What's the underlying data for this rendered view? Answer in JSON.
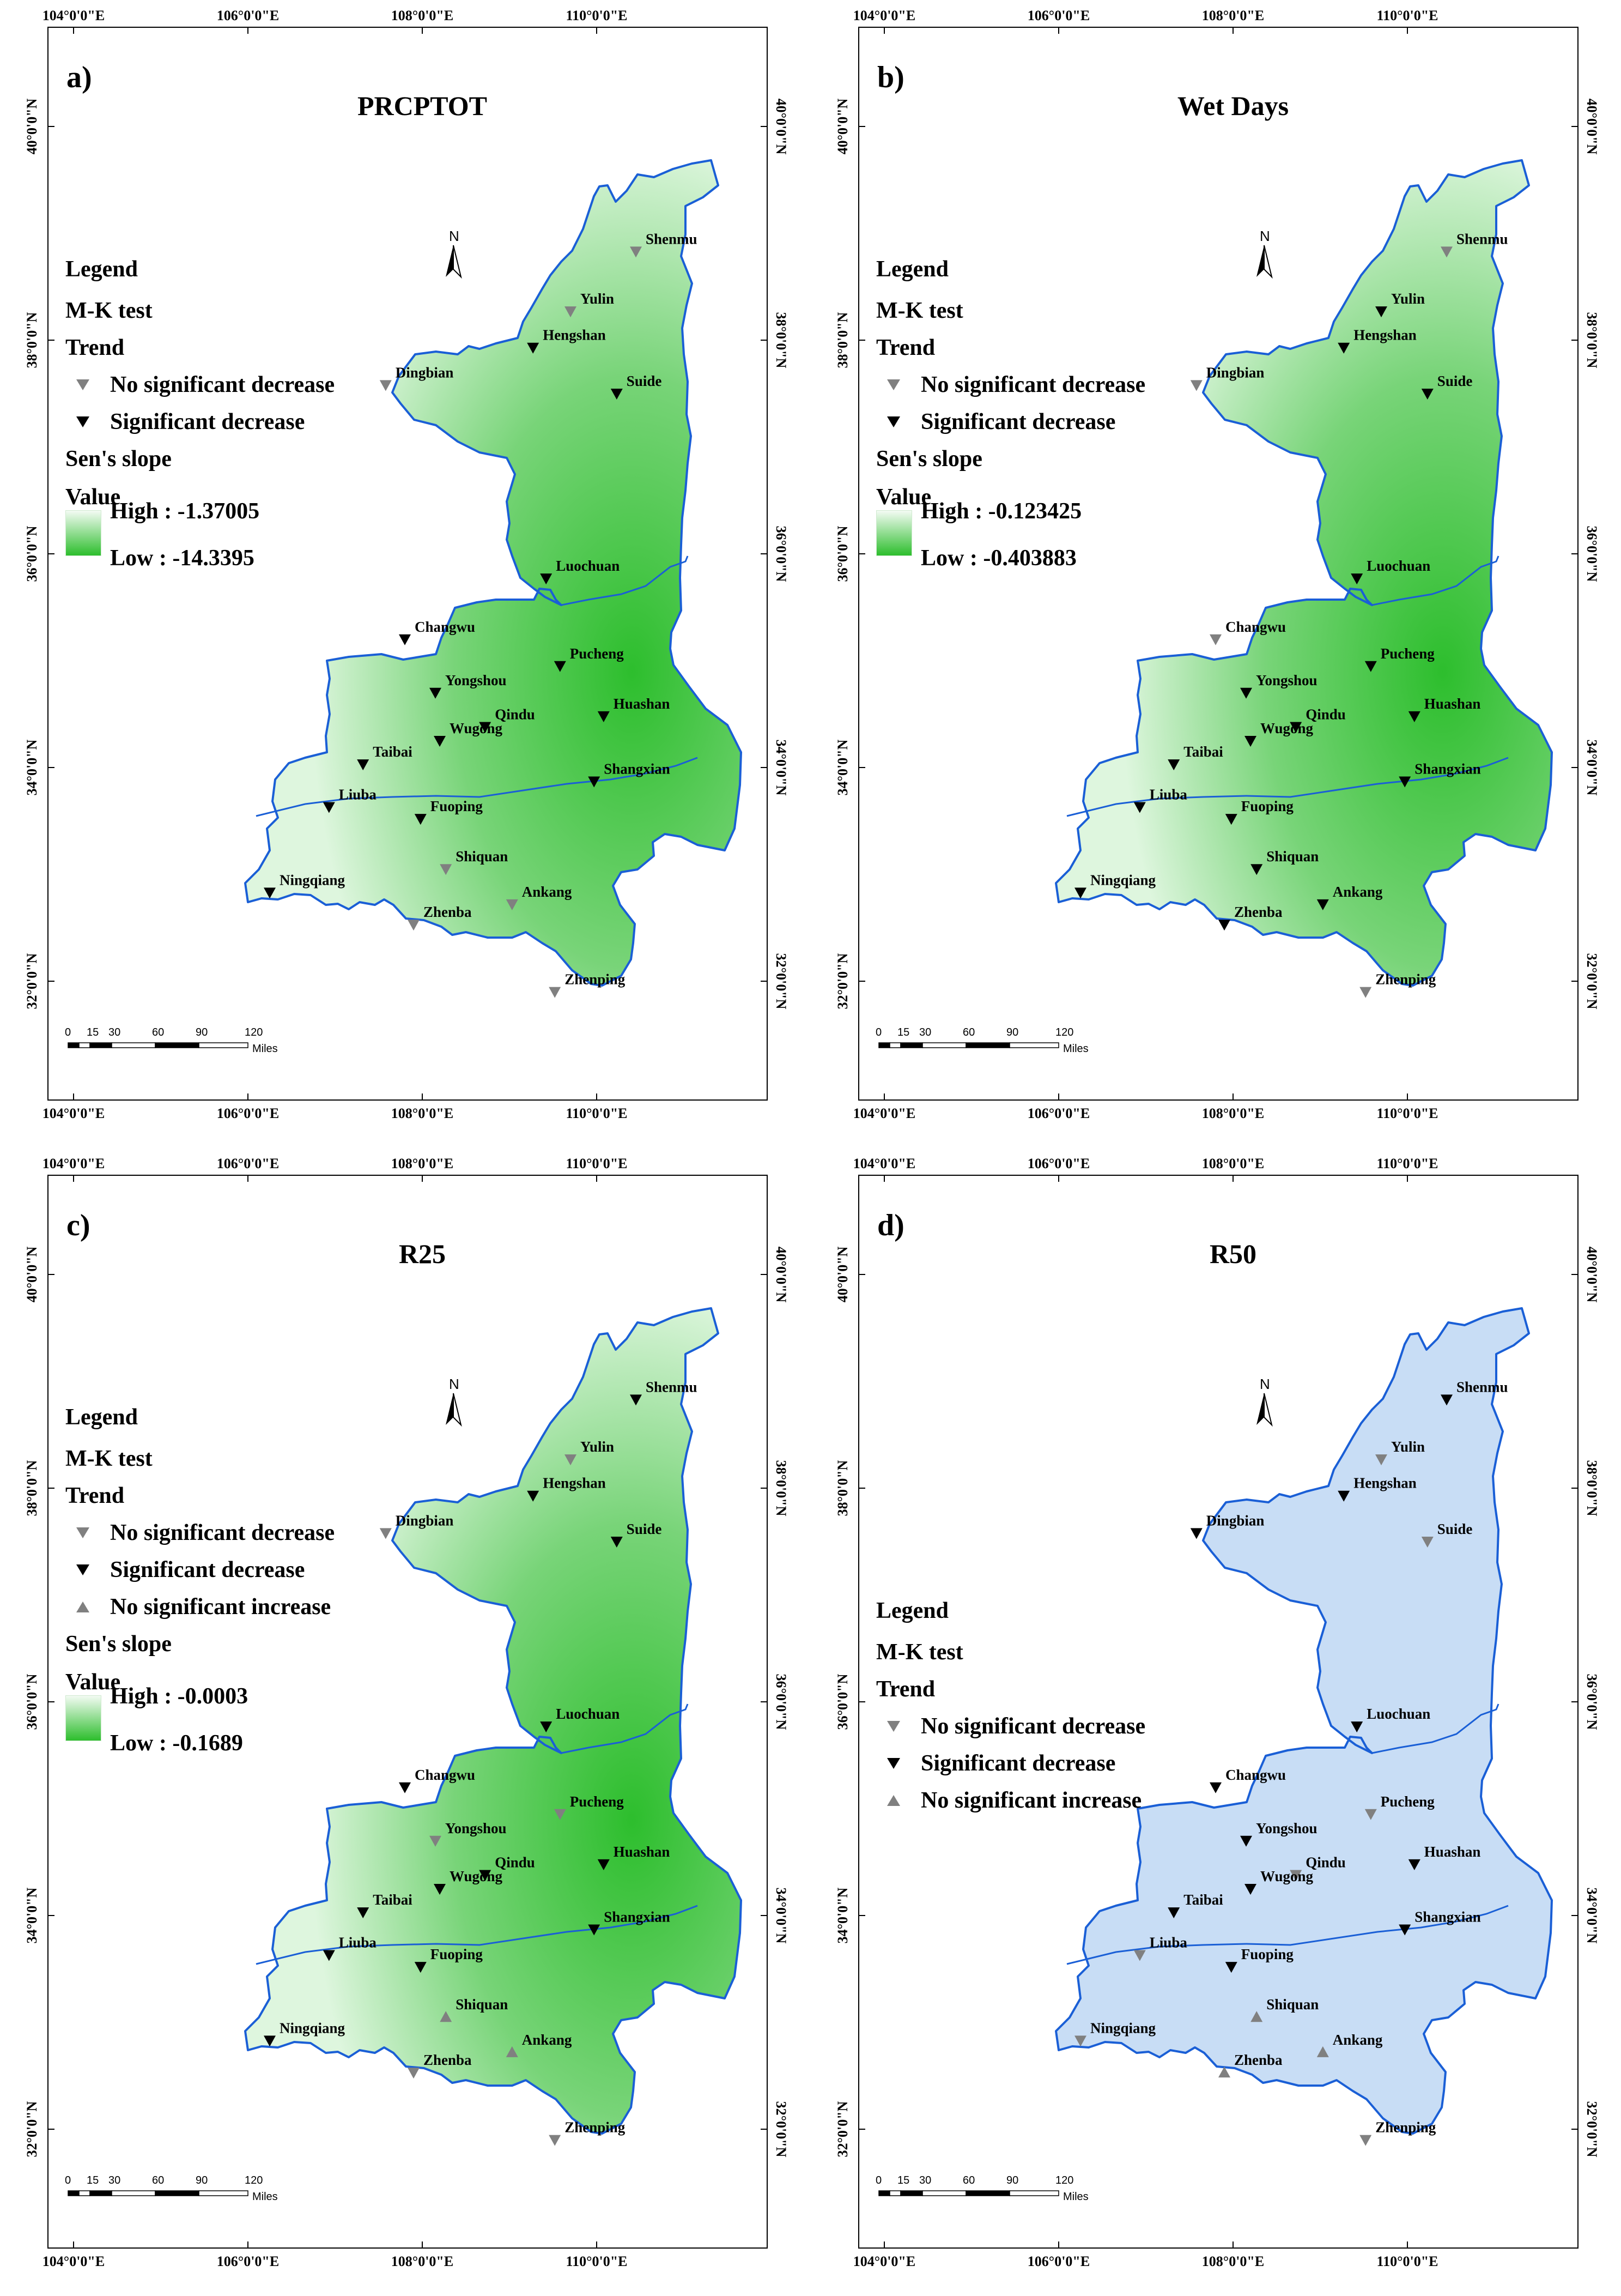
{
  "figure": {
    "axes": {
      "lon_ticks": [
        "104°0'0\"E",
        "106°0'0\"E",
        "108°0'0\"E",
        "110°0'0\"E"
      ],
      "lat_ticks": [
        "40°0'0\"N",
        "38°0'0\"N",
        "36°0'0\"N",
        "34°0'0\"N",
        "32°0'0\"N"
      ]
    },
    "north_label": "N",
    "scale": {
      "ticks": [
        "0",
        "15",
        "30",
        "60",
        "90",
        "120"
      ],
      "unit": "Miles"
    },
    "colors": {
      "boundary": "#1a5fd6",
      "green_high": "#def6de",
      "green_low": "#2dbe2d",
      "blue_fill": "#c8ddf5",
      "no_sig_decrease": "#808080",
      "sig_decrease": "#000000",
      "no_sig_increase": "#808080"
    }
  },
  "legend_labels": {
    "legend": "Legend",
    "mk": "M-K test",
    "trend": "Trend",
    "nsd": "No significant decrease",
    "sd": "Significant decrease",
    "nsi": "No significant increase",
    "sens": "Sen's slope",
    "value": "Value"
  },
  "panels": [
    {
      "letter": "a)",
      "title": "PRCPTOT",
      "fill": "green",
      "ramp": {
        "high": "High : -1.37005",
        "low": "Low : -14.3395"
      },
      "legend_items": [
        "nsd",
        "sd"
      ],
      "stations": [
        {
          "name": "Shenmu",
          "lon": 110.45,
          "lat": 38.83,
          "trend": "nsd"
        },
        {
          "name": "Yulin",
          "lon": 109.7,
          "lat": 38.27,
          "trend": "nsd"
        },
        {
          "name": "Hengshan",
          "lon": 109.27,
          "lat": 37.93,
          "trend": "sd"
        },
        {
          "name": "Suide",
          "lon": 110.23,
          "lat": 37.5,
          "trend": "sd"
        },
        {
          "name": "Dingbian",
          "lon": 107.58,
          "lat": 37.58,
          "trend": "nsd"
        },
        {
          "name": "Luochuan",
          "lon": 109.42,
          "lat": 35.77,
          "trend": "sd"
        },
        {
          "name": "Changwu",
          "lon": 107.8,
          "lat": 35.2,
          "trend": "sd"
        },
        {
          "name": "Pucheng",
          "lon": 109.58,
          "lat": 34.95,
          "trend": "sd"
        },
        {
          "name": "Yongshou",
          "lon": 108.15,
          "lat": 34.7,
          "trend": "sd"
        },
        {
          "name": "Qindu",
          "lon": 108.72,
          "lat": 34.38,
          "trend": "sd"
        },
        {
          "name": "Wugong",
          "lon": 108.2,
          "lat": 34.25,
          "trend": "sd"
        },
        {
          "name": "Huashan",
          "lon": 110.08,
          "lat": 34.48,
          "trend": "sd"
        },
        {
          "name": "Taibai",
          "lon": 107.32,
          "lat": 34.03,
          "trend": "sd"
        },
        {
          "name": "Shangxian",
          "lon": 109.97,
          "lat": 33.87,
          "trend": "sd"
        },
        {
          "name": "Liuba",
          "lon": 106.93,
          "lat": 33.63,
          "trend": "sd"
        },
        {
          "name": "Fuoping",
          "lon": 107.98,
          "lat": 33.52,
          "trend": "sd"
        },
        {
          "name": "Shiquan",
          "lon": 108.27,
          "lat": 33.05,
          "trend": "nsd"
        },
        {
          "name": "Ningqiang",
          "lon": 106.25,
          "lat": 32.83,
          "trend": "sd"
        },
        {
          "name": "Zhenba",
          "lon": 107.9,
          "lat": 32.53,
          "trend": "nsd"
        },
        {
          "name": "Ankang",
          "lon": 109.03,
          "lat": 32.72,
          "trend": "nsd"
        },
        {
          "name": "Zhenping",
          "lon": 109.52,
          "lat": 31.9,
          "trend": "nsd"
        }
      ]
    },
    {
      "letter": "b)",
      "title": "Wet Days",
      "fill": "green",
      "ramp": {
        "high": "High : -0.123425",
        "low": "Low : -0.403883"
      },
      "legend_items": [
        "nsd",
        "sd"
      ],
      "stations": [
        {
          "name": "Shenmu",
          "lon": 110.45,
          "lat": 38.83,
          "trend": "nsd"
        },
        {
          "name": "Yulin",
          "lon": 109.7,
          "lat": 38.27,
          "trend": "sd"
        },
        {
          "name": "Hengshan",
          "lon": 109.27,
          "lat": 37.93,
          "trend": "sd"
        },
        {
          "name": "Suide",
          "lon": 110.23,
          "lat": 37.5,
          "trend": "sd"
        },
        {
          "name": "Dingbian",
          "lon": 107.58,
          "lat": 37.58,
          "trend": "nsd"
        },
        {
          "name": "Luochuan",
          "lon": 109.42,
          "lat": 35.77,
          "trend": "sd"
        },
        {
          "name": "Changwu",
          "lon": 107.8,
          "lat": 35.2,
          "trend": "nsd"
        },
        {
          "name": "Pucheng",
          "lon": 109.58,
          "lat": 34.95,
          "trend": "sd"
        },
        {
          "name": "Yongshou",
          "lon": 108.15,
          "lat": 34.7,
          "trend": "sd"
        },
        {
          "name": "Qindu",
          "lon": 108.72,
          "lat": 34.38,
          "trend": "sd"
        },
        {
          "name": "Wugong",
          "lon": 108.2,
          "lat": 34.25,
          "trend": "sd"
        },
        {
          "name": "Huashan",
          "lon": 110.08,
          "lat": 34.48,
          "trend": "sd"
        },
        {
          "name": "Taibai",
          "lon": 107.32,
          "lat": 34.03,
          "trend": "sd"
        },
        {
          "name": "Shangxian",
          "lon": 109.97,
          "lat": 33.87,
          "trend": "sd"
        },
        {
          "name": "Liuba",
          "lon": 106.93,
          "lat": 33.63,
          "trend": "sd"
        },
        {
          "name": "Fuoping",
          "lon": 107.98,
          "lat": 33.52,
          "trend": "sd"
        },
        {
          "name": "Shiquan",
          "lon": 108.27,
          "lat": 33.05,
          "trend": "sd"
        },
        {
          "name": "Ningqiang",
          "lon": 106.25,
          "lat": 32.83,
          "trend": "sd"
        },
        {
          "name": "Zhenba",
          "lon": 107.9,
          "lat": 32.53,
          "trend": "sd"
        },
        {
          "name": "Ankang",
          "lon": 109.03,
          "lat": 32.72,
          "trend": "sd"
        },
        {
          "name": "Zhenping",
          "lon": 109.52,
          "lat": 31.9,
          "trend": "nsd"
        }
      ]
    },
    {
      "letter": "c)",
      "title": "R25",
      "fill": "green",
      "ramp": {
        "high": "High : -0.0003",
        "low": "Low : -0.1689"
      },
      "legend_items": [
        "nsd",
        "sd",
        "nsi"
      ],
      "stations": [
        {
          "name": "Shenmu",
          "lon": 110.45,
          "lat": 38.83,
          "trend": "sd"
        },
        {
          "name": "Yulin",
          "lon": 109.7,
          "lat": 38.27,
          "trend": "nsd"
        },
        {
          "name": "Hengshan",
          "lon": 109.27,
          "lat": 37.93,
          "trend": "sd"
        },
        {
          "name": "Suide",
          "lon": 110.23,
          "lat": 37.5,
          "trend": "sd"
        },
        {
          "name": "Dingbian",
          "lon": 107.58,
          "lat": 37.58,
          "trend": "nsd"
        },
        {
          "name": "Luochuan",
          "lon": 109.42,
          "lat": 35.77,
          "trend": "sd"
        },
        {
          "name": "Changwu",
          "lon": 107.8,
          "lat": 35.2,
          "trend": "sd"
        },
        {
          "name": "Pucheng",
          "lon": 109.58,
          "lat": 34.95,
          "trend": "nsd"
        },
        {
          "name": "Yongshou",
          "lon": 108.15,
          "lat": 34.7,
          "trend": "nsd"
        },
        {
          "name": "Qindu",
          "lon": 108.72,
          "lat": 34.38,
          "trend": "sd"
        },
        {
          "name": "Wugong",
          "lon": 108.2,
          "lat": 34.25,
          "trend": "sd"
        },
        {
          "name": "Huashan",
          "lon": 110.08,
          "lat": 34.48,
          "trend": "sd"
        },
        {
          "name": "Taibai",
          "lon": 107.32,
          "lat": 34.03,
          "trend": "sd"
        },
        {
          "name": "Shangxian",
          "lon": 109.97,
          "lat": 33.87,
          "trend": "sd"
        },
        {
          "name": "Liuba",
          "lon": 106.93,
          "lat": 33.63,
          "trend": "sd"
        },
        {
          "name": "Fuoping",
          "lon": 107.98,
          "lat": 33.52,
          "trend": "sd"
        },
        {
          "name": "Shiquan",
          "lon": 108.27,
          "lat": 33.05,
          "trend": "nsi"
        },
        {
          "name": "Ningqiang",
          "lon": 106.25,
          "lat": 32.83,
          "trend": "sd"
        },
        {
          "name": "Zhenba",
          "lon": 107.9,
          "lat": 32.53,
          "trend": "nsd"
        },
        {
          "name": "Ankang",
          "lon": 109.03,
          "lat": 32.72,
          "trend": "nsi"
        },
        {
          "name": "Zhenping",
          "lon": 109.52,
          "lat": 31.9,
          "trend": "nsd"
        }
      ]
    },
    {
      "letter": "d)",
      "title": "R50",
      "fill": "blue",
      "ramp": null,
      "legend_items": [
        "nsd",
        "sd",
        "nsi"
      ],
      "stations": [
        {
          "name": "Shenmu",
          "lon": 110.45,
          "lat": 38.83,
          "trend": "sd"
        },
        {
          "name": "Yulin",
          "lon": 109.7,
          "lat": 38.27,
          "trend": "nsd"
        },
        {
          "name": "Hengshan",
          "lon": 109.27,
          "lat": 37.93,
          "trend": "sd"
        },
        {
          "name": "Suide",
          "lon": 110.23,
          "lat": 37.5,
          "trend": "nsd"
        },
        {
          "name": "Dingbian",
          "lon": 107.58,
          "lat": 37.58,
          "trend": "sd"
        },
        {
          "name": "Luochuan",
          "lon": 109.42,
          "lat": 35.77,
          "trend": "sd"
        },
        {
          "name": "Changwu",
          "lon": 107.8,
          "lat": 35.2,
          "trend": "sd"
        },
        {
          "name": "Pucheng",
          "lon": 109.58,
          "lat": 34.95,
          "trend": "nsd"
        },
        {
          "name": "Yongshou",
          "lon": 108.15,
          "lat": 34.7,
          "trend": "sd"
        },
        {
          "name": "Qindu",
          "lon": 108.72,
          "lat": 34.38,
          "trend": "nsd"
        },
        {
          "name": "Wugong",
          "lon": 108.2,
          "lat": 34.25,
          "trend": "sd"
        },
        {
          "name": "Huashan",
          "lon": 110.08,
          "lat": 34.48,
          "trend": "sd"
        },
        {
          "name": "Taibai",
          "lon": 107.32,
          "lat": 34.03,
          "trend": "sd"
        },
        {
          "name": "Shangxian",
          "lon": 109.97,
          "lat": 33.87,
          "trend": "sd"
        },
        {
          "name": "Liuba",
          "lon": 106.93,
          "lat": 33.63,
          "trend": "nsd"
        },
        {
          "name": "Fuoping",
          "lon": 107.98,
          "lat": 33.52,
          "trend": "sd"
        },
        {
          "name": "Shiquan",
          "lon": 108.27,
          "lat": 33.05,
          "trend": "nsi"
        },
        {
          "name": "Ningqiang",
          "lon": 106.25,
          "lat": 32.83,
          "trend": "nsd"
        },
        {
          "name": "Zhenba",
          "lon": 107.9,
          "lat": 32.53,
          "trend": "nsi"
        },
        {
          "name": "Ankang",
          "lon": 109.03,
          "lat": 32.72,
          "trend": "nsi"
        },
        {
          "name": "Zhenping",
          "lon": 109.52,
          "lat": 31.9,
          "trend": "nsd"
        }
      ]
    }
  ]
}
